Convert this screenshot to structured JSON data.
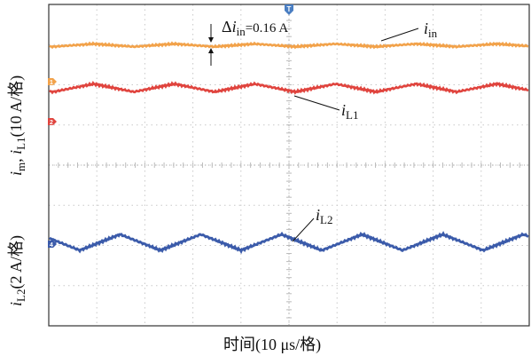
{
  "chart_data": {
    "type": "line",
    "x_axis": {
      "label": "时间(10 μs/格)"
    },
    "top_panel": {
      "ylabel_parts": {
        "i_m": "i",
        "m_sub": "m",
        "sep": ", ",
        "i_L1": "i",
        "L1_sub": "L1",
        "unit": "(10 A/格)"
      },
      "series": [
        {
          "name": "i_in",
          "label_main": "i",
          "label_sub": "in",
          "color": "#F2A24A",
          "pattern": "small triangular ripple, near-flat",
          "ripple_amplitude_A": 0.16
        },
        {
          "name": "i_L1",
          "label_main": "i",
          "label_sub": "L1",
          "color": "#E0443E",
          "pattern": "triangular ripple"
        }
      ],
      "annotation": {
        "delta": "Δ",
        "var": "i",
        "sub": "in",
        "value": "=0.16 A"
      },
      "markers": {
        "ch1": "1",
        "ch2": "2",
        "trigger": "T"
      }
    },
    "bottom_panel": {
      "ylabel_parts": {
        "i": "i",
        "sub": "L2",
        "unit": "(2 A/格)"
      },
      "series": [
        {
          "name": "i_L2",
          "label_main": "i",
          "label_sub": "L2",
          "color": "#3B5BAA",
          "pattern": "triangular ripple"
        }
      ],
      "markers": {
        "ch4": "4"
      }
    },
    "grid": true,
    "divisions": {
      "x": 10,
      "top_panel_y": 4,
      "bottom_panel_y": 4
    }
  },
  "colors": {
    "ch1": "#F2A24A",
    "ch2": "#E0443E",
    "ch4": "#3B5BAA",
    "grid": "#c8c8c8",
    "frame": "#333333",
    "trigger": "#4A7EC2"
  }
}
